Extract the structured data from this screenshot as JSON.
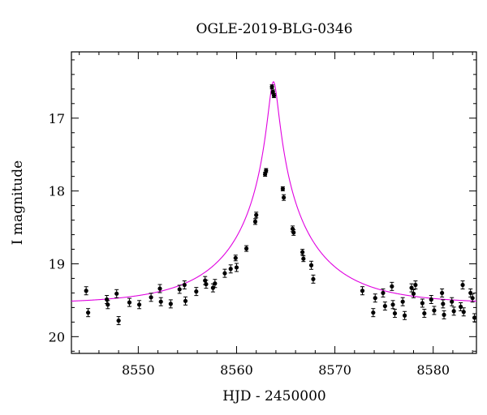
{
  "chart_data": {
    "type": "scatter",
    "title": "OGLE-2019-BLG-0346",
    "xlabel": "HJD - 2450000",
    "ylabel": "I magnitude",
    "xlim": [
      8543.2,
      8584.4
    ],
    "ylim": [
      20.23,
      16.09
    ],
    "y_inverted": true,
    "grid": false,
    "xticks": [
      8550,
      8560,
      8570,
      8580
    ],
    "yticks": [
      17,
      18,
      19,
      20
    ],
    "x_minor_step": 2,
    "y_minor_step": 0.2,
    "model_color": "#e000e0",
    "marker_color": "#000000",
    "series": [
      {
        "kind": "data",
        "x": [
          8544.7,
          8544.9,
          8546.8,
          8546.9,
          8547.8,
          8548.0,
          8549.1,
          8550.1,
          8551.3,
          8552.2,
          8552.3,
          8553.3,
          8554.2,
          8554.7,
          8554.8,
          8555.9,
          8556.8,
          8556.9,
          8557.6,
          8557.8,
          8558.8,
          8559.4,
          8559.9,
          8560.0,
          8561.0,
          8561.9,
          8562.0,
          8562.9,
          8563.0,
          8563.6,
          8563.7,
          8563.8,
          8564.7,
          8564.8,
          8565.7,
          8565.8,
          8566.7,
          8566.8,
          8567.6,
          8567.8,
          8572.8,
          8573.9,
          8574.1,
          8574.9,
          8575.1,
          8575.8,
          8575.9,
          8576.1,
          8576.9,
          8577.1,
          8577.8,
          8578.0,
          8578.2,
          8578.9,
          8579.1,
          8579.8,
          8580.1,
          8580.9,
          8581.0,
          8581.1,
          8581.9,
          8582.1,
          8582.8,
          8583.0,
          8583.1,
          8583.8,
          8584.0,
          8584.2
        ],
        "y": [
          19.37,
          19.67,
          19.49,
          19.56,
          19.41,
          19.78,
          19.53,
          19.56,
          19.46,
          19.34,
          19.52,
          19.55,
          19.35,
          19.29,
          19.51,
          19.38,
          19.23,
          19.28,
          19.33,
          19.27,
          19.13,
          19.07,
          18.92,
          19.05,
          18.79,
          18.42,
          18.33,
          17.77,
          17.72,
          16.57,
          16.64,
          16.69,
          17.97,
          18.09,
          18.52,
          18.57,
          18.84,
          18.93,
          19.02,
          19.21,
          19.37,
          19.67,
          19.47,
          19.4,
          19.58,
          19.31,
          19.56,
          19.68,
          19.52,
          19.71,
          19.33,
          19.41,
          19.29,
          19.54,
          19.68,
          19.49,
          19.64,
          19.4,
          19.55,
          19.7,
          19.52,
          19.65,
          19.59,
          19.29,
          19.66,
          19.4,
          19.47,
          19.74
        ]
      },
      {
        "kind": "model",
        "t0": 8563.75,
        "baseline_mag": 19.55,
        "peak_mag": 16.5,
        "tE": 9.0,
        "u0": 0.053
      }
    ]
  }
}
